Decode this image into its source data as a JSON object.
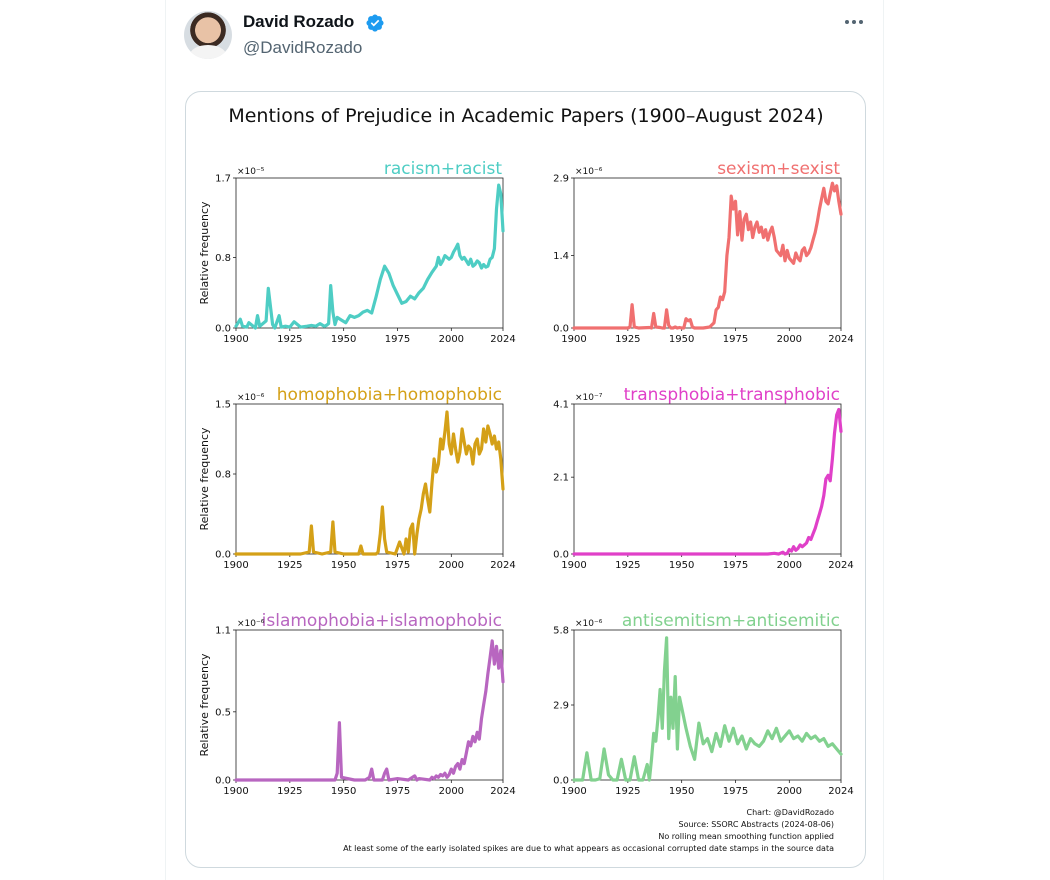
{
  "post": {
    "author_name": "David Rozado",
    "author_handle": "@DavidRozado",
    "verified_icon": "verified-badge-icon",
    "more_icon": "more-options-icon"
  },
  "figure": {
    "title": "Mentions of Prejudice in Academic Papers (1900–August 2024)",
    "footnotes": [
      "Chart: @DavidRozado",
      "Source: SSORC Abstracts (2024-08-06)",
      "No rolling mean smoothing function applied",
      "At least some of the early isolated spikes are due to what appears as occasional corrupted date stamps in the source data"
    ]
  },
  "chart_data": [
    {
      "type": "line",
      "label": "racism+racist",
      "color": "#4ecdc4",
      "ylabel": "Relative frequency",
      "y_multiplier": "×10⁻⁵",
      "yticks": [
        "0.0",
        "0.8",
        "1.7"
      ],
      "xticks": [
        "1900",
        "1925",
        "1950",
        "1975",
        "2000",
        "2024"
      ],
      "xlim": [
        1900,
        2024
      ],
      "ylim": [
        0,
        1.7
      ],
      "x": [
        1900,
        1902,
        1903,
        1905,
        1906,
        1908,
        1909,
        1910,
        1911,
        1912,
        1914,
        1915,
        1917,
        1918,
        1920,
        1921,
        1923,
        1925,
        1927,
        1930,
        1933,
        1935,
        1937,
        1939,
        1941,
        1942,
        1943,
        1944,
        1945,
        1946,
        1947,
        1949,
        1951,
        1953,
        1955,
        1957,
        1959,
        1961,
        1963,
        1965,
        1967,
        1969,
        1971,
        1973,
        1975,
        1977,
        1979,
        1981,
        1983,
        1985,
        1987,
        1989,
        1991,
        1993,
        1994,
        1995,
        1996,
        1997,
        1998,
        1999,
        2000,
        2001,
        2002,
        2003,
        2004,
        2005,
        2006,
        2007,
        2008,
        2009,
        2010,
        2011,
        2012,
        2013,
        2014,
        2015,
        2016,
        2017,
        2018,
        2019,
        2020,
        2021,
        2022,
        2023,
        2024
      ],
      "y": [
        0.02,
        0.1,
        0.02,
        0.01,
        0.06,
        0.02,
        0.0,
        0.14,
        0.02,
        0.04,
        0.08,
        0.45,
        0.04,
        0.0,
        0.14,
        0.01,
        0.02,
        0.01,
        0.07,
        0.01,
        0.02,
        0.03,
        0.02,
        0.05,
        0.02,
        0.03,
        0.05,
        0.48,
        0.18,
        0.04,
        0.12,
        0.09,
        0.06,
        0.14,
        0.12,
        0.14,
        0.18,
        0.2,
        0.17,
        0.35,
        0.55,
        0.7,
        0.62,
        0.48,
        0.38,
        0.28,
        0.3,
        0.36,
        0.33,
        0.4,
        0.45,
        0.55,
        0.63,
        0.7,
        0.8,
        0.72,
        0.76,
        0.82,
        0.8,
        0.78,
        0.8,
        0.86,
        0.9,
        0.95,
        0.82,
        0.78,
        0.8,
        0.76,
        0.72,
        0.78,
        0.7,
        0.72,
        0.76,
        0.74,
        0.68,
        0.72,
        0.69,
        0.7,
        0.78,
        0.8,
        0.9,
        1.35,
        1.62,
        1.52,
        1.1
      ]
    },
    {
      "type": "line",
      "label": "sexism+sexist",
      "color": "#f07070",
      "ylabel": "",
      "y_multiplier": "×10⁻⁶",
      "yticks": [
        "0.0",
        "1.4",
        "2.9"
      ],
      "xticks": [
        "1900",
        "1925",
        "1950",
        "1975",
        "2000",
        "2024"
      ],
      "xlim": [
        1900,
        2024
      ],
      "ylim": [
        0,
        2.9
      ],
      "x": [
        1900,
        1910,
        1920,
        1925,
        1926,
        1927,
        1928,
        1930,
        1935,
        1936,
        1937,
        1938,
        1940,
        1941,
        1942,
        1943,
        1944,
        1945,
        1946,
        1947,
        1948,
        1949,
        1950,
        1951,
        1952,
        1953,
        1954,
        1955,
        1956,
        1957,
        1960,
        1963,
        1965,
        1966,
        1967,
        1968,
        1969,
        1970,
        1971,
        1972,
        1973,
        1974,
        1975,
        1976,
        1977,
        1978,
        1979,
        1980,
        1981,
        1982,
        1983,
        1984,
        1985,
        1986,
        1987,
        1988,
        1989,
        1990,
        1991,
        1992,
        1993,
        1994,
        1995,
        1996,
        1997,
        1998,
        1999,
        2000,
        2001,
        2002,
        2003,
        2004,
        2005,
        2006,
        2007,
        2008,
        2009,
        2010,
        2011,
        2012,
        2013,
        2014,
        2015,
        2016,
        2017,
        2018,
        2019,
        2020,
        2021,
        2022,
        2023,
        2024
      ],
      "y": [
        0.0,
        0.0,
        0.0,
        0.0,
        0.02,
        0.45,
        0.02,
        0.0,
        0.01,
        0.0,
        0.28,
        0.02,
        0.01,
        0.0,
        0.0,
        0.35,
        0.05,
        0.0,
        0.0,
        0.02,
        0.0,
        0.01,
        0.0,
        0.0,
        0.18,
        0.14,
        0.16,
        0.02,
        0.0,
        0.0,
        0.0,
        0.02,
        0.1,
        0.35,
        0.4,
        0.6,
        0.55,
        0.7,
        1.4,
        1.75,
        2.55,
        2.3,
        2.45,
        1.8,
        2.25,
        1.7,
        2.1,
        2.2,
        1.9,
        2.05,
        1.75,
        1.95,
        2.05,
        1.85,
        1.95,
        1.75,
        1.9,
        1.7,
        1.85,
        1.95,
        1.75,
        1.5,
        1.45,
        1.4,
        1.6,
        1.3,
        1.5,
        1.35,
        1.3,
        1.25,
        1.45,
        1.35,
        1.3,
        1.5,
        1.55,
        1.4,
        1.45,
        1.55,
        1.7,
        1.85,
        2.05,
        2.3,
        2.5,
        2.7,
        2.45,
        2.4,
        2.6,
        2.8,
        2.65,
        2.75,
        2.45,
        2.2
      ]
    },
    {
      "type": "line",
      "label": "homophobia+homophobic",
      "color": "#d4a017",
      "ylabel": "Relative frequency",
      "y_multiplier": "×10⁻⁶",
      "yticks": [
        "0.0",
        "0.8",
        "1.5"
      ],
      "xticks": [
        "1900",
        "1925",
        "1950",
        "1975",
        "2000",
        "2024"
      ],
      "xlim": [
        1900,
        2024
      ],
      "ylim": [
        0,
        1.5
      ],
      "x": [
        1900,
        1910,
        1920,
        1930,
        1934,
        1935,
        1936,
        1940,
        1944,
        1945,
        1946,
        1950,
        1955,
        1957,
        1958,
        1959,
        1965,
        1966,
        1967,
        1968,
        1969,
        1970,
        1974,
        1976,
        1978,
        1979,
        1980,
        1981,
        1982,
        1983,
        1984,
        1985,
        1986,
        1987,
        1988,
        1989,
        1990,
        1991,
        1992,
        1993,
        1994,
        1995,
        1996,
        1997,
        1998,
        1999,
        2000,
        2001,
        2002,
        2003,
        2004,
        2005,
        2006,
        2007,
        2008,
        2009,
        2010,
        2011,
        2012,
        2013,
        2014,
        2015,
        2016,
        2017,
        2018,
        2019,
        2020,
        2021,
        2022,
        2023,
        2024
      ],
      "y": [
        0.0,
        0.0,
        0.0,
        0.0,
        0.02,
        0.28,
        0.02,
        0.0,
        0.02,
        0.32,
        0.02,
        0.0,
        0.0,
        0.0,
        0.08,
        0.0,
        0.0,
        0.02,
        0.2,
        0.47,
        0.15,
        0.02,
        0.0,
        0.12,
        0.0,
        0.15,
        0.02,
        0.25,
        0.3,
        0.0,
        0.2,
        0.35,
        0.45,
        0.6,
        0.7,
        0.55,
        0.42,
        0.7,
        0.95,
        0.82,
        0.9,
        1.15,
        1.05,
        1.22,
        1.42,
        1.1,
        1.0,
        1.2,
        1.05,
        0.92,
        1.02,
        1.25,
        1.12,
        1.0,
        1.08,
        1.05,
        0.9,
        1.1,
        1.15,
        1.0,
        1.05,
        1.25,
        1.12,
        1.28,
        1.2,
        1.1,
        1.18,
        1.05,
        1.12,
        0.95,
        0.65
      ]
    },
    {
      "type": "line",
      "label": "transphobia+transphobic",
      "color": "#e040c8",
      "ylabel": "",
      "y_multiplier": "×10⁻⁷",
      "yticks": [
        "0.0",
        "2.1",
        "4.1"
      ],
      "xticks": [
        "1900",
        "1925",
        "1950",
        "1975",
        "2000",
        "2024"
      ],
      "xlim": [
        1900,
        2024
      ],
      "ylim": [
        0,
        4.1
      ],
      "x": [
        1900,
        1950,
        1990,
        1993,
        1995,
        1997,
        1998,
        1999,
        2000,
        2001,
        2002,
        2003,
        2004,
        2005,
        2006,
        2007,
        2008,
        2009,
        2010,
        2011,
        2012,
        2013,
        2014,
        2015,
        2016,
        2017,
        2018,
        2019,
        2020,
        2021,
        2022,
        2023,
        2024
      ],
      "y": [
        0.0,
        0.0,
        0.0,
        0.02,
        0.0,
        0.05,
        0.0,
        0.02,
        0.12,
        0.08,
        0.2,
        0.1,
        0.15,
        0.25,
        0.2,
        0.25,
        0.3,
        0.45,
        0.4,
        0.55,
        0.7,
        0.9,
        1.1,
        1.3,
        1.6,
        2.05,
        2.15,
        2.0,
        2.6,
        3.3,
        3.8,
        3.95,
        3.35
      ]
    },
    {
      "type": "line",
      "label": "islamophobia+islamophobic",
      "color": "#b866c0",
      "ylabel": "Relative frequency",
      "y_multiplier": "×10⁻⁶",
      "yticks": [
        "0.0",
        "0.5",
        "1.1"
      ],
      "xticks": [
        "1900",
        "1925",
        "1950",
        "1975",
        "2000",
        "2024"
      ],
      "xlim": [
        1900,
        2024
      ],
      "ylim": [
        0,
        1.1
      ],
      "x": [
        1900,
        1920,
        1940,
        1946,
        1947,
        1948,
        1949,
        1955,
        1960,
        1962,
        1963,
        1964,
        1968,
        1969,
        1970,
        1971,
        1975,
        1980,
        1983,
        1984,
        1985,
        1990,
        1991,
        1992,
        1993,
        1994,
        1995,
        1996,
        1997,
        1998,
        1999,
        2000,
        2001,
        2002,
        2003,
        2004,
        2005,
        2006,
        2007,
        2008,
        2009,
        2010,
        2011,
        2012,
        2013,
        2014,
        2015,
        2016,
        2017,
        2018,
        2019,
        2020,
        2021,
        2022,
        2023,
        2024
      ],
      "y": [
        0.0,
        0.0,
        0.0,
        0.0,
        0.05,
        0.42,
        0.02,
        0.0,
        0.0,
        0.02,
        0.08,
        0.0,
        0.0,
        0.05,
        0.08,
        0.0,
        0.01,
        0.0,
        0.03,
        0.0,
        0.01,
        0.0,
        0.02,
        0.01,
        0.03,
        0.02,
        0.04,
        0.03,
        0.05,
        0.02,
        0.04,
        0.08,
        0.05,
        0.1,
        0.12,
        0.08,
        0.15,
        0.12,
        0.2,
        0.28,
        0.25,
        0.32,
        0.28,
        0.35,
        0.3,
        0.45,
        0.55,
        0.65,
        0.78,
        0.9,
        1.02,
        0.85,
        0.98,
        0.82,
        0.95,
        0.72
      ]
    },
    {
      "type": "line",
      "label": "antisemitism+antisemitic",
      "color": "#82d18f",
      "ylabel": "",
      "y_multiplier": "×10⁻⁶",
      "yticks": [
        "0.0",
        "2.9",
        "5.8"
      ],
      "xticks": [
        "1900",
        "1925",
        "1950",
        "1975",
        "2000",
        "2024"
      ],
      "xlim": [
        1900,
        2024
      ],
      "ylim": [
        0,
        5.8
      ],
      "x": [
        1900,
        1902,
        1904,
        1906,
        1908,
        1910,
        1912,
        1914,
        1916,
        1918,
        1920,
        1922,
        1924,
        1925,
        1926,
        1928,
        1930,
        1932,
        1934,
        1935,
        1936,
        1937,
        1938,
        1939,
        1940,
        1941,
        1942,
        1943,
        1944,
        1945,
        1946,
        1947,
        1948,
        1949,
        1950,
        1952,
        1954,
        1956,
        1958,
        1960,
        1962,
        1964,
        1966,
        1968,
        1970,
        1972,
        1974,
        1976,
        1978,
        1980,
        1982,
        1984,
        1986,
        1988,
        1990,
        1992,
        1994,
        1996,
        1998,
        2000,
        2002,
        2004,
        2006,
        2008,
        2010,
        2012,
        2014,
        2016,
        2018,
        2020,
        2022,
        2024
      ],
      "y": [
        0.0,
        0.0,
        0.0,
        1.05,
        0.0,
        0.0,
        0.05,
        1.2,
        0.2,
        0.0,
        0.0,
        0.8,
        0.0,
        0.0,
        0.0,
        0.9,
        0.0,
        0.0,
        0.6,
        0.0,
        0.8,
        1.8,
        1.5,
        2.4,
        3.5,
        2.0,
        4.2,
        5.5,
        1.6,
        3.2,
        2.0,
        4.0,
        1.2,
        3.2,
        2.8,
        2.0,
        1.3,
        0.8,
        2.2,
        1.4,
        1.6,
        1.1,
        1.8,
        1.3,
        2.1,
        1.5,
        2.0,
        1.4,
        1.7,
        1.2,
        1.6,
        1.4,
        1.3,
        1.5,
        1.9,
        1.6,
        2.0,
        1.5,
        1.7,
        1.9,
        1.6,
        1.7,
        1.5,
        1.8,
        1.6,
        1.7,
        1.5,
        1.6,
        1.3,
        1.4,
        1.2,
        1.0
      ]
    }
  ]
}
